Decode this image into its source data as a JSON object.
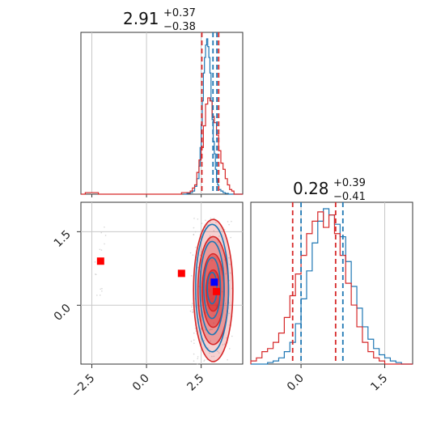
{
  "chart_data": [
    {
      "type": "histogram",
      "panel": "top-left",
      "title": {
        "value": "2.91",
        "upper": "+0.37",
        "lower": "−0.38"
      },
      "xlim": [
        -3.0,
        4.4
      ],
      "quantile_lines": {
        "blue": [
          3.04,
          3.22
        ],
        "red": [
          2.53,
          3.3
        ]
      },
      "series": [
        {
          "color": "#1f77b4",
          "bins_x": [
            1.7,
            1.85,
            2.0,
            2.1,
            2.2,
            2.3,
            2.4,
            2.45,
            2.5,
            2.55,
            2.6,
            2.65,
            2.7,
            2.75,
            2.8,
            2.85,
            2.9,
            2.95,
            3.0,
            3.05,
            3.1,
            3.15,
            3.2,
            3.25,
            3.3,
            3.4,
            3.5,
            3.6,
            3.75,
            4.4
          ],
          "counts": [
            0,
            0.5,
            1,
            2,
            5,
            10,
            18,
            30,
            45,
            60,
            78,
            88,
            96,
            100,
            95,
            88,
            78,
            60,
            48,
            34,
            26,
            16,
            10,
            6,
            3,
            2,
            1,
            0.5,
            0
          ]
        },
        {
          "color": "#d62728",
          "bins_x": [
            -3.0,
            -2.8,
            -2.6,
            -2.4,
            -2.2,
            1.4,
            1.6,
            1.8,
            2.0,
            2.1,
            2.2,
            2.3,
            2.4,
            2.5,
            2.6,
            2.7,
            2.8,
            2.9,
            3.0,
            3.1,
            3.2,
            3.3,
            3.4,
            3.5,
            3.6,
            3.7,
            3.8,
            3.9,
            4.0,
            4.4
          ],
          "counts": [
            0,
            1,
            1,
            1,
            0,
            0,
            1,
            1,
            2,
            4,
            6,
            14,
            22,
            30,
            44,
            58,
            62,
            60,
            50,
            46,
            38,
            28,
            20,
            16,
            10,
            6,
            3,
            2,
            0
          ]
        }
      ]
    },
    {
      "type": "histogram",
      "panel": "bottom-right",
      "title": {
        "value": "0.28",
        "upper": "+0.39",
        "lower": "−0.41"
      },
      "xlim": [
        -0.9,
        2.0
      ],
      "xticks": [
        "0.0",
        "1.5"
      ],
      "xtick_values": [
        0.0,
        1.5
      ],
      "quantile_lines": {
        "blue": [
          0.0,
          0.75
        ],
        "red": [
          -0.15,
          0.62
        ]
      },
      "series": [
        {
          "color": "#1f77b4",
          "bins_x": [
            -0.9,
            -0.6,
            -0.5,
            -0.4,
            -0.3,
            -0.2,
            -0.1,
            0.0,
            0.1,
            0.2,
            0.3,
            0.4,
            0.5,
            0.6,
            0.7,
            0.8,
            0.9,
            1.0,
            1.1,
            1.2,
            1.3,
            1.4,
            1.5,
            1.6,
            1.7,
            1.8,
            2.0
          ],
          "counts": [
            0,
            1,
            2,
            4,
            8,
            14,
            26,
            42,
            60,
            78,
            92,
            100,
            96,
            90,
            82,
            66,
            50,
            36,
            24,
            16,
            10,
            6,
            4,
            2,
            1,
            0
          ]
        },
        {
          "color": "#d62728",
          "bins_x": [
            -0.9,
            -0.8,
            -0.7,
            -0.6,
            -0.5,
            -0.4,
            -0.3,
            -0.2,
            -0.1,
            0.0,
            0.1,
            0.2,
            0.3,
            0.4,
            0.5,
            0.6,
            0.7,
            0.8,
            0.9,
            1.0,
            1.1,
            1.2,
            1.3,
            1.4,
            1.5,
            2.0
          ],
          "counts": [
            2,
            4,
            8,
            10,
            14,
            20,
            30,
            44,
            58,
            70,
            84,
            92,
            98,
            88,
            96,
            84,
            70,
            52,
            38,
            24,
            14,
            8,
            4,
            2,
            0
          ]
        }
      ]
    },
    {
      "type": "scatter",
      "panel": "bottom-left",
      "xlim": [
        -3.0,
        4.4
      ],
      "ylim": [
        -1.2,
        2.1
      ],
      "xticks": [
        "−2.5",
        "0.0",
        "2.5"
      ],
      "xtick_values": [
        -2.5,
        0.0,
        2.5
      ],
      "yticks": [
        "1.5",
        "0.0"
      ],
      "ytick_values": [
        1.5,
        0.0
      ],
      "markers": [
        {
          "color": "#ff0000",
          "shape": "square",
          "x": -2.1,
          "y": 0.9
        },
        {
          "color": "#ff0000",
          "shape": "square",
          "x": 1.6,
          "y": 0.65
        },
        {
          "color": "#ff0000",
          "shape": "square",
          "x": 3.2,
          "y": 0.28
        },
        {
          "color": "#0000ff",
          "shape": "square",
          "x": 3.1,
          "y": 0.47
        }
      ],
      "contours": [
        {
          "color": "#1f77b4",
          "center": [
            3.0,
            0.35
          ],
          "radii_x": [
            0.75,
            0.55,
            0.38,
            0.22
          ],
          "radii_y": [
            1.3,
            0.95,
            0.62,
            0.32
          ]
        },
        {
          "color": "#d62728",
          "center": [
            3.05,
            0.3
          ],
          "radii_x": [
            0.9,
            0.7,
            0.5,
            0.32
          ],
          "radii_y": [
            1.45,
            1.1,
            0.75,
            0.42
          ]
        }
      ]
    }
  ],
  "colors": {
    "blue": "#1f77b4",
    "red": "#d62728",
    "marker_red": "#ff0000",
    "marker_blue": "#0000ff"
  }
}
